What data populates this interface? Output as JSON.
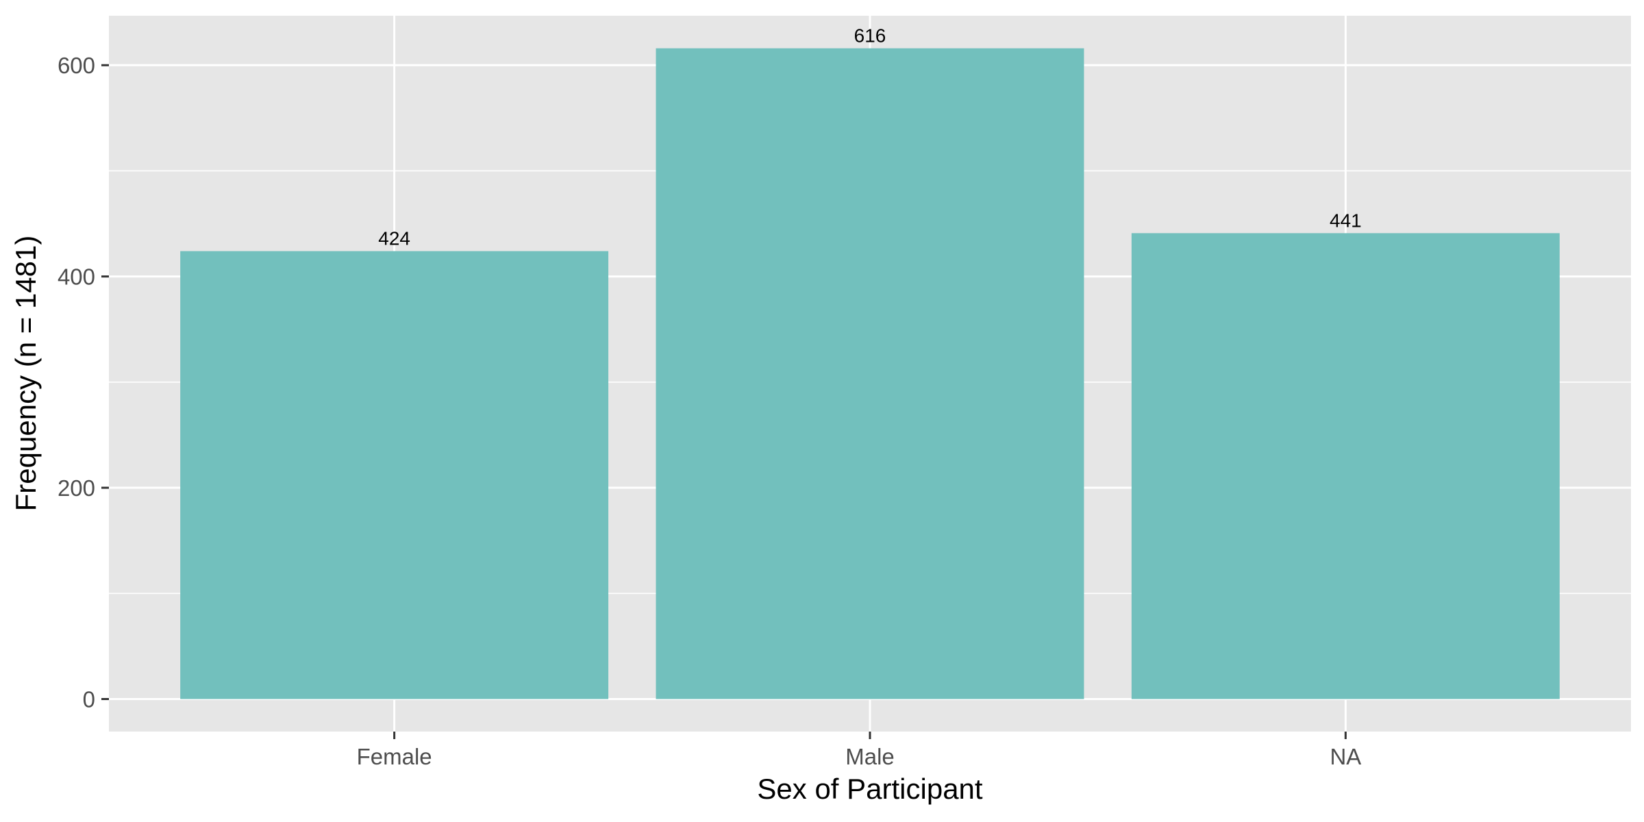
{
  "chart_data": {
    "type": "bar",
    "categories": [
      "Female",
      "Male",
      "NA"
    ],
    "values": [
      424,
      616,
      441
    ],
    "data_labels": [
      "424",
      "616",
      "441"
    ],
    "xlabel": "Sex of Participant",
    "ylabel": "Frequency (n = 1481)",
    "ylim": [
      -30.8,
      646.8
    ],
    "yticks": [
      0,
      200,
      400,
      600
    ],
    "ytick_labels": [
      "0",
      "200",
      "400",
      "600"
    ],
    "grid": true,
    "legend": "none",
    "colors": {
      "bar": "#72c0bd",
      "panel": "#e6e6e6",
      "grid": "#ffffff",
      "tick": "#333333"
    }
  }
}
